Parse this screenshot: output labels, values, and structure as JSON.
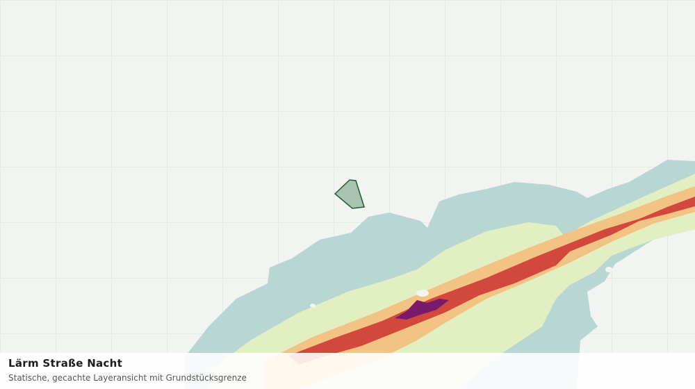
{
  "title": "Lärm Straße Nacht",
  "subtitle": "Statische, gecachte Layeransicht mit Grundstücksgrenze"
}
